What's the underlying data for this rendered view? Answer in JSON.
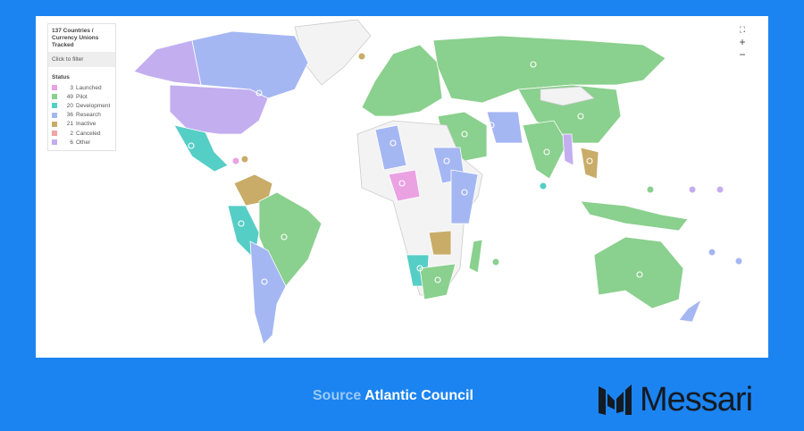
{
  "legend": {
    "title": "137 Countries / Currency Unions Tracked",
    "filter_placeholder": "Click to filter",
    "status_label": "Status",
    "items": [
      {
        "count": "3",
        "label": "Launched",
        "color": "#eaa2e3"
      },
      {
        "count": "49",
        "label": "Pilot",
        "color": "#8ad08e"
      },
      {
        "count": "20",
        "label": "Development",
        "color": "#55cec6"
      },
      {
        "count": "36",
        "label": "Research",
        "color": "#a5b7f3"
      },
      {
        "count": "21",
        "label": "Inactive",
        "color": "#c8ac68"
      },
      {
        "count": "2",
        "label": "Canceled",
        "color": "#f4a4a4"
      },
      {
        "count": "6",
        "label": "Other",
        "color": "#c3aef0"
      }
    ]
  },
  "map_controls": {
    "fullscreen": "⛶",
    "zoom_in": "+",
    "zoom_out": "−"
  },
  "footer": {
    "source_key": "Source",
    "source_value": "Atlantic Council",
    "brand": "Messari"
  }
}
